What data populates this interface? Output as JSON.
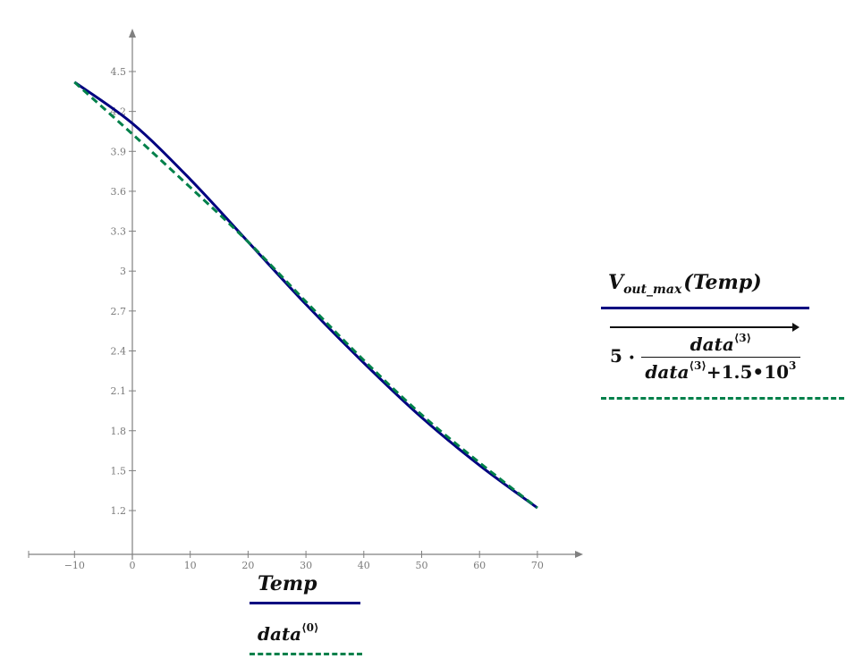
{
  "chart_data": {
    "type": "line",
    "title": "",
    "xlabel": "Temp",
    "ylabel": "",
    "xlim": [
      -19.5,
      78
    ],
    "ylim": [
      0.87,
      4.95
    ],
    "grid": false,
    "legend_position": "right / below",
    "x_ticks": [
      -10,
      0,
      10,
      20,
      30,
      40,
      50,
      60,
      70
    ],
    "x_tick_labels": [
      "−10",
      "0",
      "10",
      "20",
      "30",
      "40",
      "50",
      "60",
      "70"
    ],
    "y_ticks": [
      1.2,
      1.5,
      1.8,
      2.1,
      2.4,
      2.7,
      3,
      3.3,
      3.6,
      3.9,
      4.2,
      4.5
    ],
    "y_tick_labels": [
      "1.2",
      "1.5",
      "1.8",
      "2.1",
      "2.4",
      "2.7",
      "3",
      "3.3",
      "3.6",
      "3.9",
      "4.2",
      "4.5"
    ],
    "series": [
      {
        "name": "V_out_max(Temp) vs Temp",
        "style": "solid",
        "color": "#000080",
        "x": [
          -10,
          0,
          10,
          20,
          30,
          40,
          50,
          60,
          70
        ],
        "values": [
          4.42,
          4.11,
          3.69,
          3.22,
          2.75,
          2.31,
          1.9,
          1.54,
          1.22
        ]
      },
      {
        "name": "5*data<3>/(data<3>+1.5*10^3) vs data<0>",
        "style": "dashed",
        "color": "#00804a",
        "x": [
          -10,
          0,
          10,
          20,
          30,
          40,
          50,
          60,
          70
        ],
        "values": [
          4.42,
          4.03,
          3.63,
          3.22,
          2.77,
          2.33,
          1.92,
          1.56,
          1.22
        ]
      }
    ]
  },
  "legend": {
    "y_series_1": {
      "base": "V",
      "sub": "out_max",
      "arg": "(Temp)"
    },
    "y_series_2": {
      "coef": "5",
      "dot": "•",
      "num_base": "data",
      "num_sup": "⟨3⟩",
      "den_base": "data",
      "den_sup": "⟨3⟩",
      "den_rest": "+1.5•10",
      "den_exp": "3"
    },
    "x_series_1": "Temp",
    "x_series_2": {
      "base": "data",
      "sup": "⟨0⟩"
    }
  },
  "colors": {
    "series1": "#000080",
    "series2": "#00804a",
    "axis": "#808080"
  }
}
